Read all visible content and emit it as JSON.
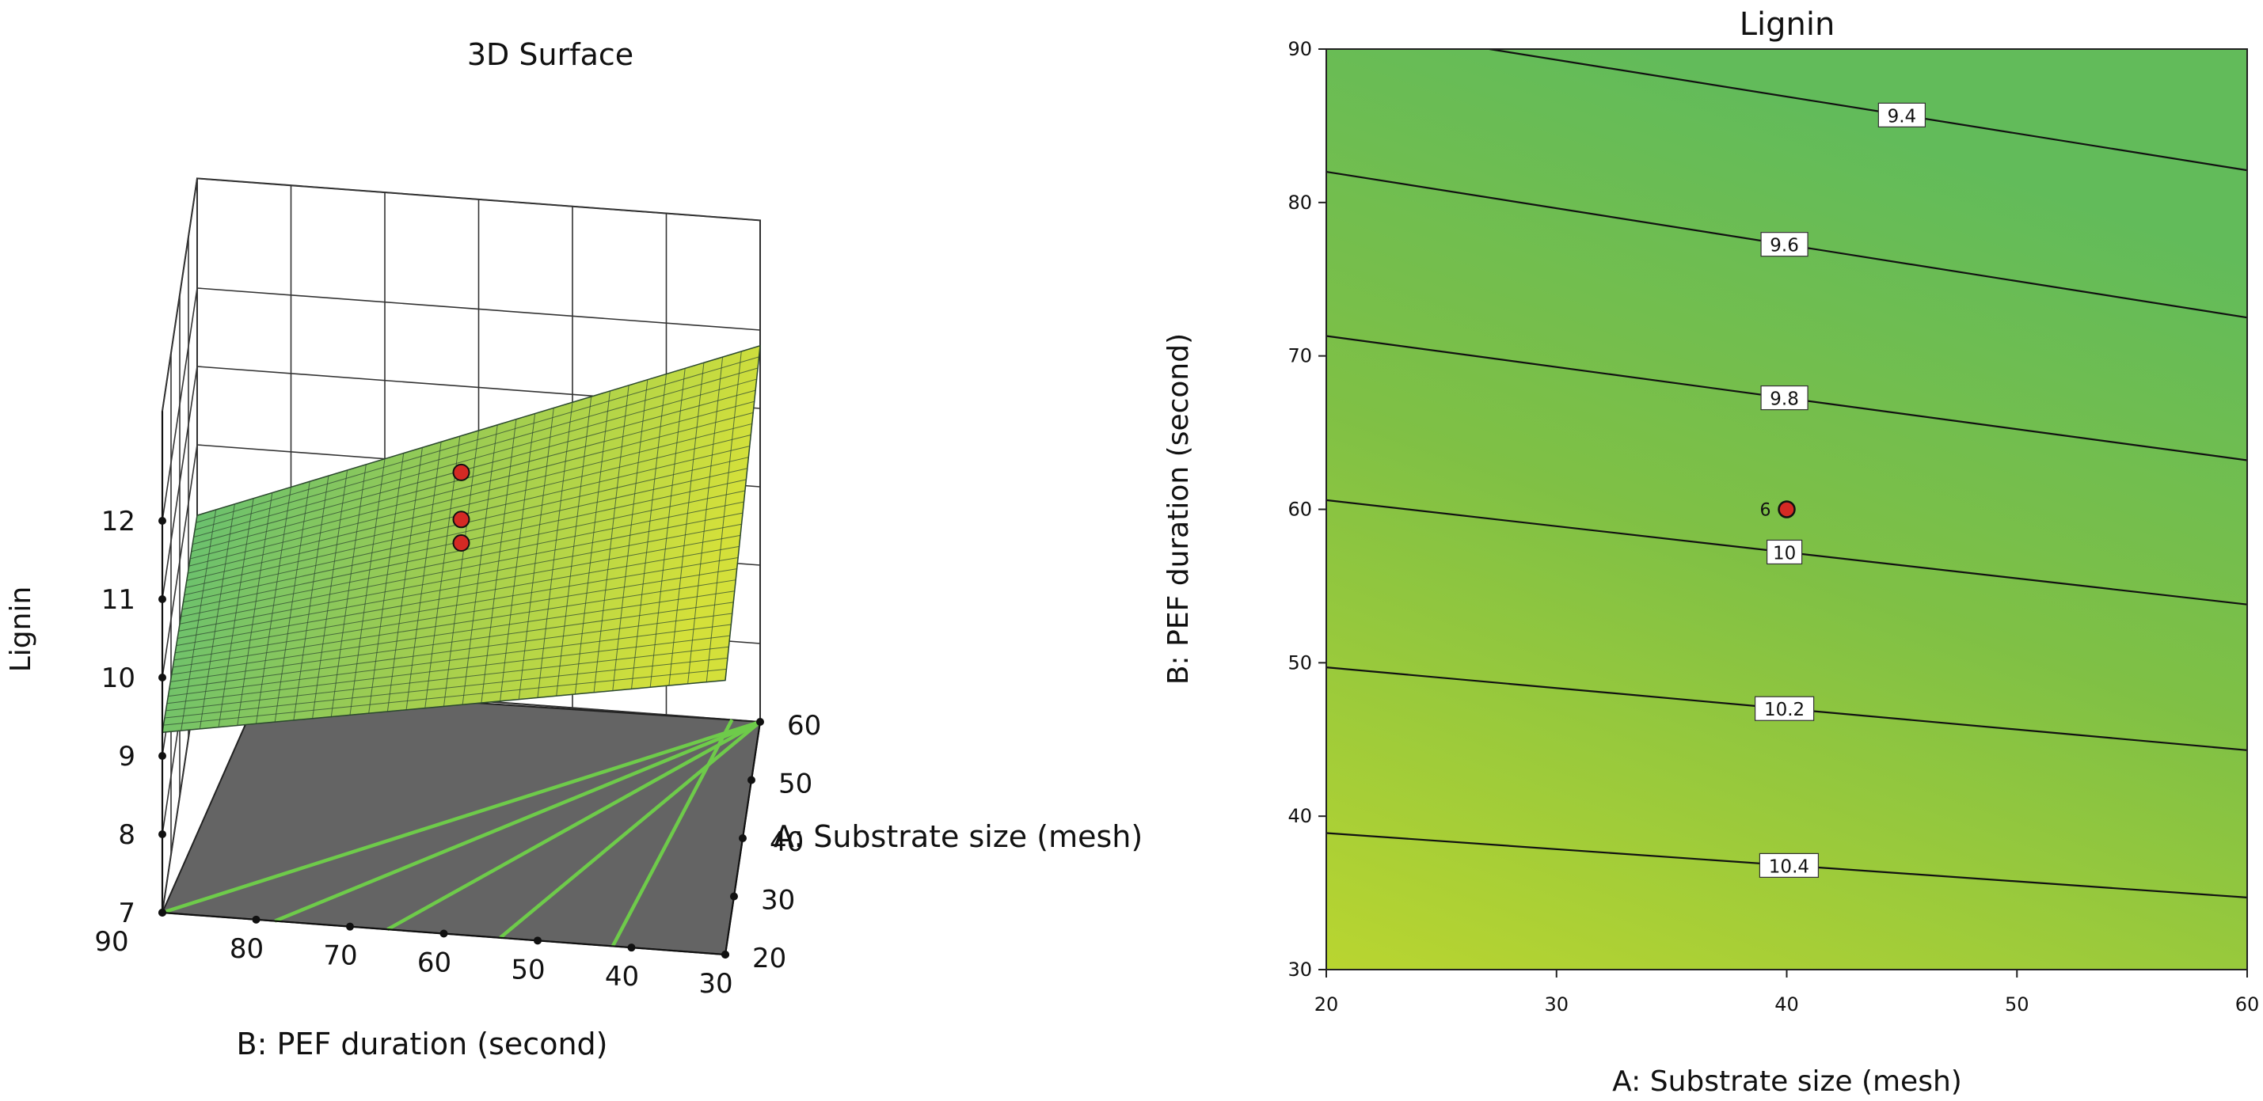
{
  "chart_data": [
    {
      "type": "surface3d",
      "title": "3D Surface",
      "zlabel": "Lignin",
      "xlabel": "A: Substrate size (mesh)",
      "ylabel": "B: PEF duration (second)",
      "x_ticks": [
        20,
        30,
        40,
        50,
        60
      ],
      "y_ticks": [
        30,
        40,
        50,
        60,
        70,
        80,
        90
      ],
      "z_ticks": [
        7,
        8,
        9,
        10,
        11,
        12
      ],
      "xlim": [
        20,
        60
      ],
      "ylim": [
        30,
        90
      ],
      "zlim": [
        7,
        12
      ],
      "corners": [
        {
          "x": 20,
          "y": 90,
          "z": 9.3
        },
        {
          "x": 60,
          "y": 90,
          "z": 9.1
        },
        {
          "x": 20,
          "y": 30,
          "z": 10.5
        },
        {
          "x": 60,
          "y": 30,
          "z": 11.8
        }
      ],
      "design_points": [
        {
          "x": 40,
          "y": 60,
          "z": 11.4
        },
        {
          "x": 40,
          "y": 60,
          "z": 10.8
        },
        {
          "x": 40,
          "y": 60,
          "z": 10.5
        }
      ]
    },
    {
      "type": "contour",
      "title": "Lignin",
      "xlabel": "A: Substrate size (mesh)",
      "ylabel": "B: PEF duration (second)",
      "x_ticks": [
        20,
        30,
        40,
        50,
        60
      ],
      "y_ticks": [
        30,
        40,
        50,
        60,
        70,
        80,
        90
      ],
      "xlim": [
        20,
        60
      ],
      "ylim": [
        30,
        90
      ],
      "contours": [
        {
          "level": "9.4",
          "y_at_x20": 91.7,
          "y_at_x60": 82.1,
          "label_x": 45.0
        },
        {
          "level": "9.6",
          "y_at_x20": 82.0,
          "y_at_x60": 72.5,
          "label_x": 39.9
        },
        {
          "level": "9.8",
          "y_at_x20": 71.3,
          "y_at_x60": 63.2,
          "label_x": 39.9
        },
        {
          "level": "10",
          "y_at_x20": 60.6,
          "y_at_x60": 53.8,
          "label_x": 39.9
        },
        {
          "level": "10.2",
          "y_at_x20": 49.7,
          "y_at_x60": 44.3,
          "label_x": 39.9
        },
        {
          "level": "10.4",
          "y_at_x20": 38.9,
          "y_at_x60": 34.7,
          "label_x": 40.1
        }
      ],
      "design_point": {
        "x": 40,
        "y": 60,
        "label": "6"
      },
      "colors": {
        "high": "#b9d530",
        "low": "#69be57"
      }
    }
  ]
}
